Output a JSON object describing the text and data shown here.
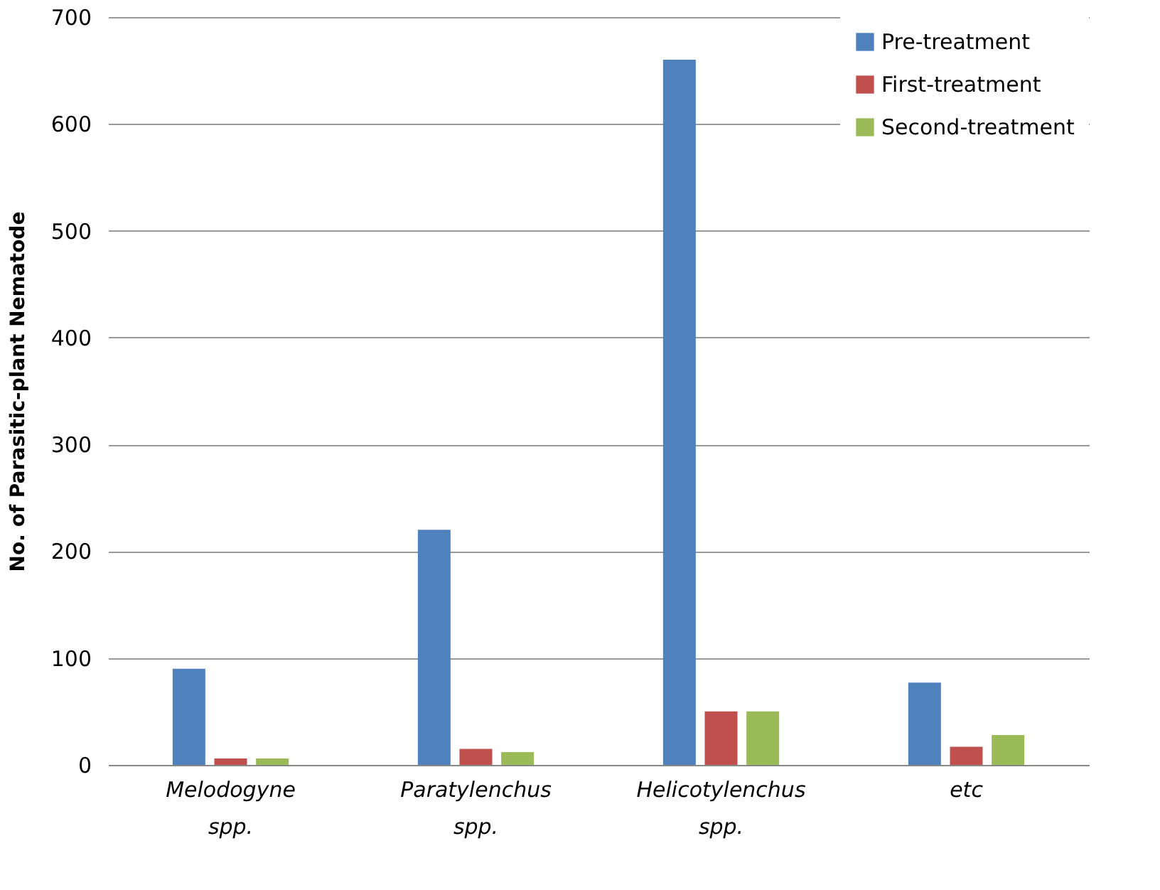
{
  "chart_data": {
    "type": "bar",
    "ylabel": "No. of Parasitic-plant  Nematode",
    "categories": [
      "Melodogyne spp.",
      "Paratylenchus spp.",
      "Helicotylenchus spp.",
      "etc"
    ],
    "series": [
      {
        "name": "Pre-treatment",
        "color": "#4f81bd",
        "values": [
          90,
          220,
          660,
          77
        ]
      },
      {
        "name": "First-treatment",
        "color": "#c0504d",
        "values": [
          6,
          15,
          50,
          17
        ]
      },
      {
        "name": "Second-treatment",
        "color": "#9bbb59",
        "values": [
          6,
          12,
          50,
          28
        ]
      }
    ],
    "ylim": [
      0,
      700
    ],
    "yticks": [
      0,
      100,
      200,
      300,
      400,
      500,
      600,
      700
    ],
    "grid": "y",
    "legend": "top right"
  }
}
